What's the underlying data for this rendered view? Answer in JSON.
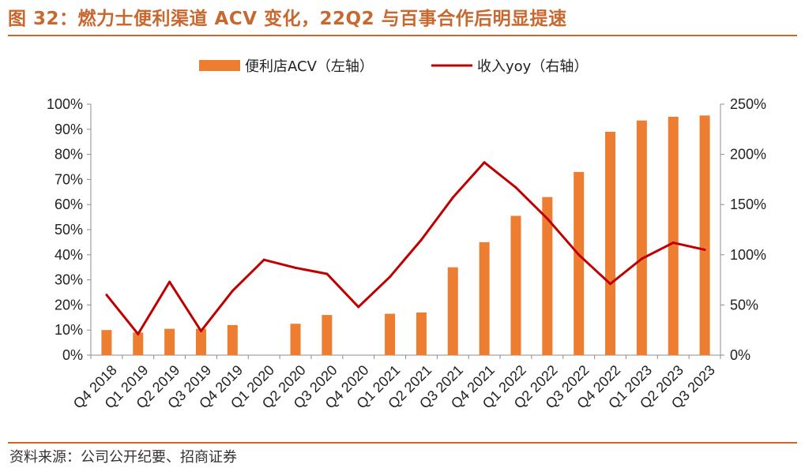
{
  "title": "图 32：燃力士便利渠道 ACV 变化，22Q2 与百事合作后明显提速",
  "source": "资料来源：公司公开纪要、招商证券",
  "colors": {
    "accent": "#c8682f",
    "bar": "#ed7d31",
    "line": "#c00000"
  },
  "chart_data": {
    "type": "bar",
    "categories": [
      "Q4 2018",
      "Q1 2019",
      "Q2 2019",
      "Q3 2019",
      "Q4 2019",
      "Q1 2020",
      "Q2 2020",
      "Q3 2020",
      "Q4 2020",
      "Q1 2021",
      "Q2 2021",
      "Q3 2021",
      "Q4 2021",
      "Q1 2022",
      "Q2 2022",
      "Q3 2022",
      "Q4 2022",
      "Q1 2023",
      "Q2 2023",
      "Q3 2023"
    ],
    "series": [
      {
        "name": "便利店ACV（左轴）",
        "type": "bar",
        "axis": "left",
        "values": [
          10,
          9,
          10.5,
          10.5,
          12,
          null,
          12.5,
          16,
          null,
          16.5,
          17,
          35,
          45,
          55.5,
          63,
          73,
          89,
          93.5,
          95,
          95.5
        ]
      },
      {
        "name": "收入yoy（右轴）",
        "type": "line",
        "axis": "right",
        "values": [
          60,
          21,
          73,
          24,
          64,
          95,
          87,
          81,
          48,
          78,
          115,
          157,
          192,
          167,
          136,
          100,
          71,
          96,
          112,
          105
        ]
      }
    ],
    "y_left": {
      "min": 0,
      "max": 100,
      "step": 10,
      "labels": [
        "0%",
        "10%",
        "20%",
        "30%",
        "40%",
        "50%",
        "60%",
        "70%",
        "80%",
        "90%",
        "100%"
      ]
    },
    "y_right": {
      "min": 0,
      "max": 250,
      "step": 50,
      "labels": [
        "0%",
        "50%",
        "100%",
        "150%",
        "200%",
        "250%"
      ]
    },
    "legend": [
      "便利店ACV（左轴）",
      "收入yoy（右轴）"
    ]
  }
}
